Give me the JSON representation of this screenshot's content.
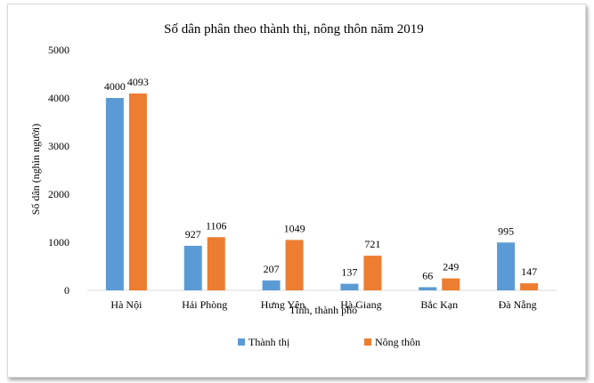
{
  "chart_data": {
    "type": "bar",
    "title": "Số dân phân theo thành thị, nông thôn năm 2019",
    "xlabel": "Tỉnh, thành phố",
    "ylabel": "Số dân (nghìn người)",
    "ylim": [
      0,
      5000
    ],
    "yticks": [
      "0",
      "1000",
      "2000",
      "3000",
      "4000",
      "5000"
    ],
    "categories": [
      "Hà Nội",
      "Hải Phòng",
      "Hưng Yên",
      "Hà Giang",
      "Bắc Kạn",
      "Đà Nẵng"
    ],
    "series": [
      {
        "name": "Thành thị",
        "values": [
          4000,
          927,
          207,
          137,
          66,
          995
        ],
        "color": "#5b9bd5"
      },
      {
        "name": "Nông thôn",
        "values": [
          4093,
          1106,
          1049,
          721,
          249,
          147
        ],
        "color": "#ed7d31"
      }
    ],
    "legend_position": "bottom",
    "grid": false
  }
}
